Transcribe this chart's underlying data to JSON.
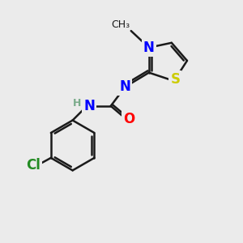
{
  "bg_color": "#ebebeb",
  "bond_color": "#1a1a1a",
  "bond_width": 1.8,
  "atom_colors": {
    "N": "#0000ff",
    "S": "#cccc00",
    "O": "#ff0000",
    "Cl": "#228b22",
    "C": "#1a1a1a",
    "H": "#7aab8a"
  },
  "font_size_atom": 12,
  "font_size_methyl": 9,
  "font_size_H": 9
}
